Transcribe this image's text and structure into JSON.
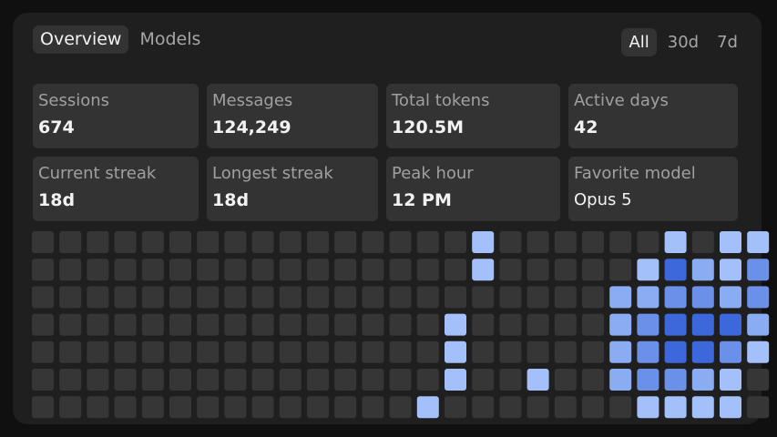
{
  "tabs": {
    "left": [
      {
        "label": "Overview",
        "active": true
      },
      {
        "label": "Models",
        "active": false
      }
    ],
    "range": [
      {
        "label": "All",
        "active": true
      },
      {
        "label": "30d",
        "active": false
      },
      {
        "label": "7d",
        "active": false
      }
    ]
  },
  "stats": [
    {
      "label": "Sessions",
      "value": "674"
    },
    {
      "label": "Messages",
      "value": "124,249"
    },
    {
      "label": "Total tokens",
      "value": "120.5M"
    },
    {
      "label": "Active days",
      "value": "42"
    },
    {
      "label": "Current streak",
      "value": "18d"
    },
    {
      "label": "Longest streak",
      "value": "18d"
    },
    {
      "label": "Peak hour",
      "value": "12 PM"
    },
    {
      "label": "Favorite model",
      "value": "Opus 5"
    }
  ],
  "colors": {
    "empty": "#363636",
    "level1": "#a3c0fa",
    "level2": "#8aacf3",
    "level3": "#6b90ea",
    "level4": "#3d68dc"
  },
  "activity": {
    "weeks": 27,
    "days": 7,
    "levels": [
      [
        0,
        0,
        0,
        0,
        0,
        0,
        0
      ],
      [
        0,
        0,
        0,
        0,
        0,
        0,
        0
      ],
      [
        0,
        0,
        0,
        0,
        0,
        0,
        0
      ],
      [
        0,
        0,
        0,
        0,
        0,
        0,
        0
      ],
      [
        0,
        0,
        0,
        0,
        0,
        0,
        0
      ],
      [
        0,
        0,
        0,
        0,
        0,
        0,
        0
      ],
      [
        0,
        0,
        0,
        0,
        0,
        0,
        0
      ],
      [
        0,
        0,
        0,
        0,
        0,
        0,
        0
      ],
      [
        0,
        0,
        0,
        0,
        0,
        0,
        0
      ],
      [
        0,
        0,
        0,
        0,
        0,
        0,
        0
      ],
      [
        0,
        0,
        0,
        0,
        0,
        0,
        0
      ],
      [
        0,
        0,
        0,
        0,
        0,
        0,
        0
      ],
      [
        0,
        0,
        0,
        0,
        0,
        0,
        0
      ],
      [
        0,
        0,
        0,
        0,
        0,
        0,
        0
      ],
      [
        0,
        0,
        0,
        0,
        0,
        0,
        1
      ],
      [
        0,
        0,
        0,
        1,
        1,
        1,
        0
      ],
      [
        1,
        1,
        0,
        0,
        0,
        0,
        0
      ],
      [
        0,
        0,
        0,
        0,
        0,
        0,
        0
      ],
      [
        0,
        0,
        0,
        0,
        0,
        1,
        0
      ],
      [
        0,
        0,
        0,
        0,
        0,
        0,
        0
      ],
      [
        0,
        0,
        0,
        0,
        0,
        0,
        0
      ],
      [
        0,
        0,
        2,
        2,
        2,
        2,
        0
      ],
      [
        0,
        1,
        2,
        3,
        3,
        3,
        1
      ],
      [
        1,
        4,
        3,
        4,
        4,
        3,
        1
      ],
      [
        0,
        2,
        3,
        4,
        4,
        2,
        1
      ],
      [
        1,
        1,
        2,
        4,
        3,
        1,
        1
      ],
      [
        1,
        3,
        3,
        2,
        1,
        0,
        0
      ]
    ]
  }
}
